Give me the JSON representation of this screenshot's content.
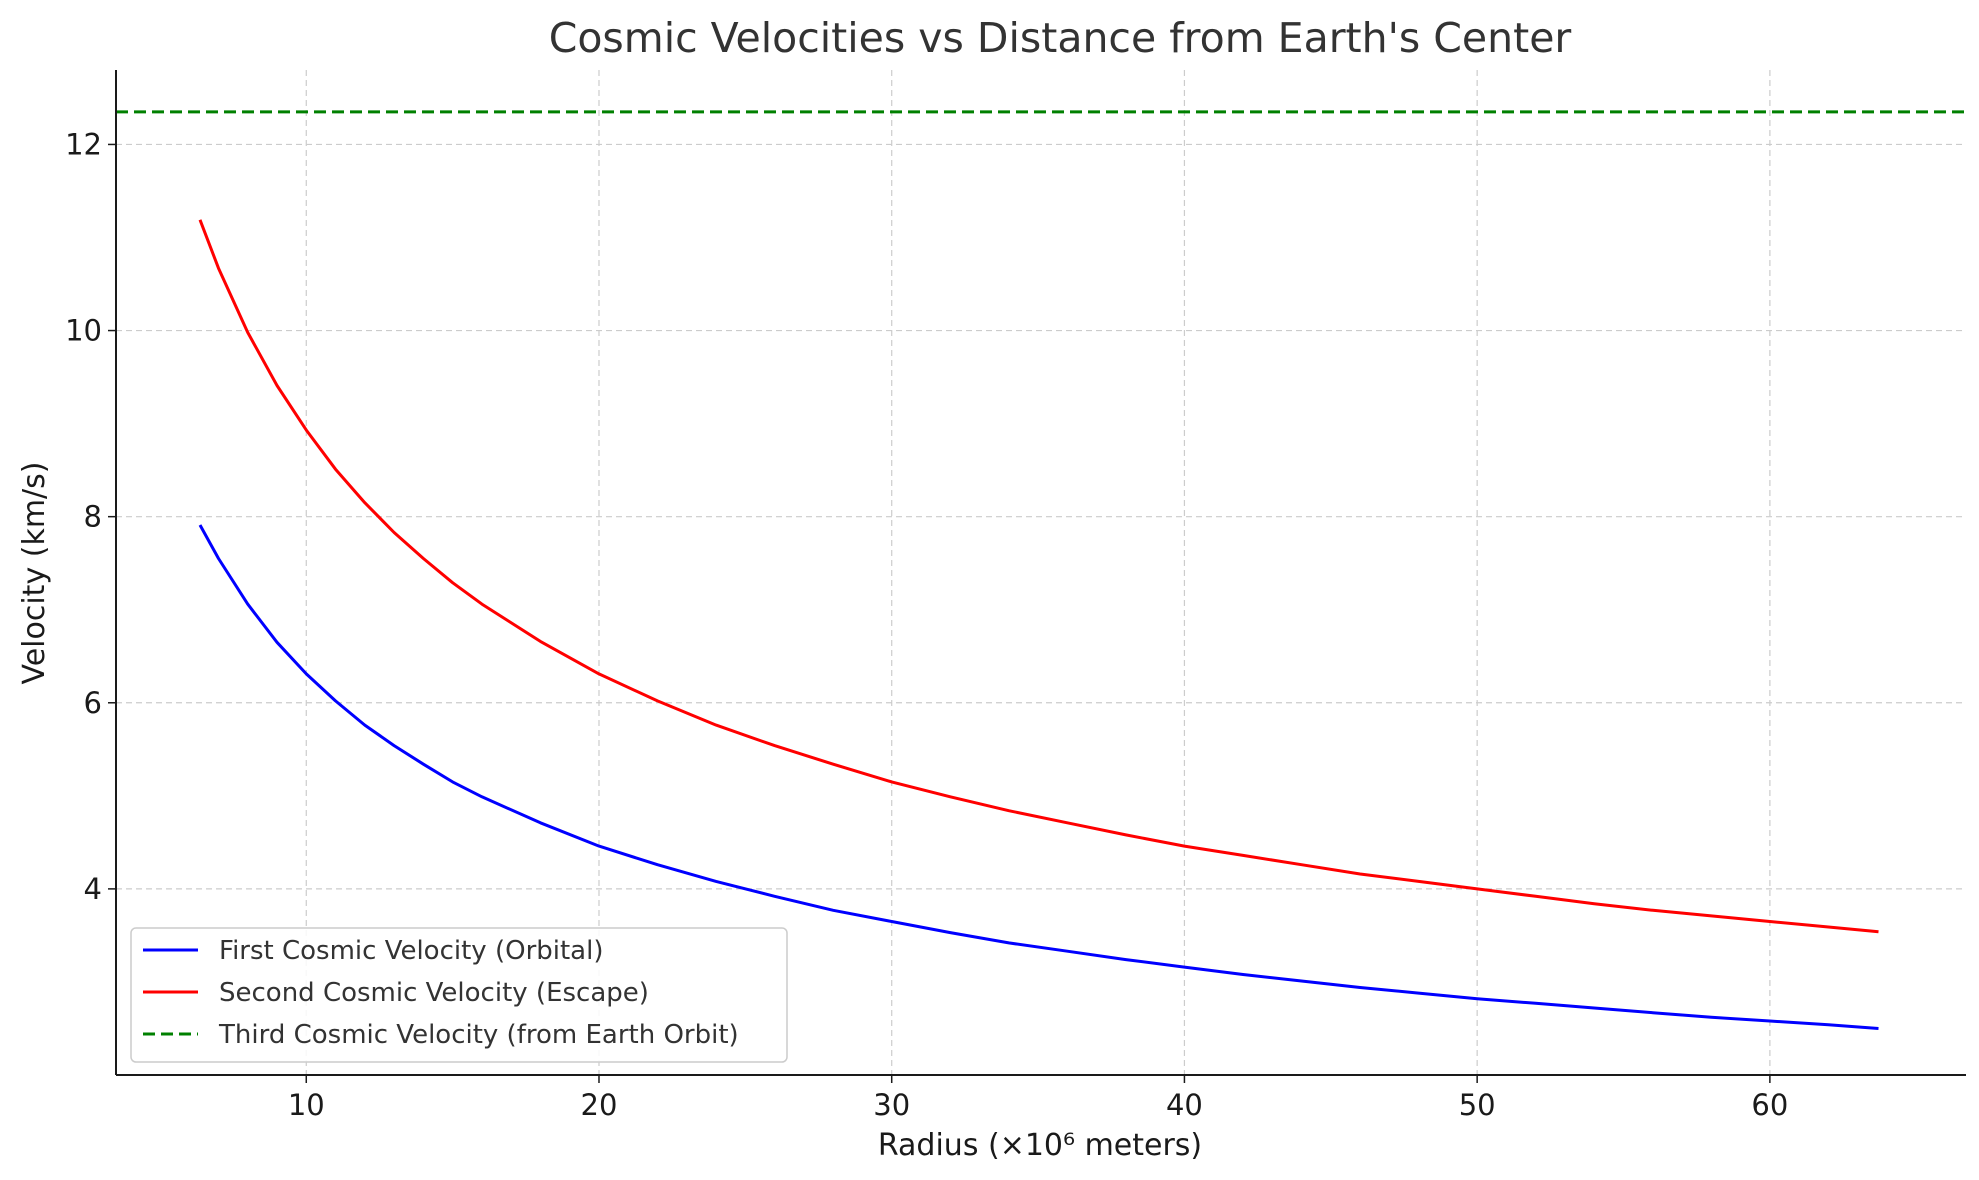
{
  "chart_data": {
    "type": "line",
    "title": "Cosmic Velocities vs Distance from Earth's Center",
    "xlabel": "Radius (×10⁶ meters)",
    "ylabel": "Velocity (km/s)",
    "xlim": [
      3.5,
      66.7
    ],
    "ylim": [
      2.0,
      12.8
    ],
    "xticks": [
      10,
      20,
      30,
      40,
      50,
      60
    ],
    "yticks": [
      4,
      6,
      8,
      10,
      12
    ],
    "grid": true,
    "legend_position": "lower-left",
    "series": [
      {
        "name": "First Cosmic Velocity (Orbital)",
        "color": "#0000ff",
        "style": "solid",
        "x": [
          6.371,
          7,
          8,
          9,
          10,
          11,
          12,
          13,
          14,
          15,
          16,
          18,
          20,
          22,
          24,
          26,
          28,
          30,
          32,
          34,
          36,
          38,
          40,
          42,
          44,
          46,
          48,
          50,
          52,
          54,
          56,
          58,
          60,
          62,
          63.71
        ],
        "y": [
          7.91,
          7.55,
          7.06,
          6.65,
          6.31,
          6.02,
          5.76,
          5.54,
          5.34,
          5.15,
          4.99,
          4.71,
          4.46,
          4.26,
          4.08,
          3.92,
          3.77,
          3.65,
          3.53,
          3.42,
          3.33,
          3.24,
          3.16,
          3.08,
          3.01,
          2.94,
          2.88,
          2.82,
          2.77,
          2.72,
          2.67,
          2.62,
          2.58,
          2.54,
          2.5
        ]
      },
      {
        "name": "Second Cosmic Velocity (Escape)",
        "color": "#ff0000",
        "style": "solid",
        "x": [
          6.371,
          7,
          8,
          9,
          10,
          11,
          12,
          13,
          14,
          15,
          16,
          18,
          20,
          22,
          24,
          26,
          28,
          30,
          32,
          34,
          36,
          38,
          40,
          42,
          44,
          46,
          48,
          50,
          52,
          54,
          56,
          58,
          60,
          62,
          63.71
        ],
        "y": [
          11.19,
          10.67,
          9.98,
          9.41,
          8.93,
          8.51,
          8.15,
          7.83,
          7.55,
          7.29,
          7.06,
          6.66,
          6.31,
          6.02,
          5.76,
          5.54,
          5.34,
          5.15,
          4.99,
          4.84,
          4.71,
          4.58,
          4.46,
          4.36,
          4.26,
          4.16,
          4.08,
          4.0,
          3.92,
          3.84,
          3.77,
          3.71,
          3.65,
          3.59,
          3.54
        ]
      },
      {
        "name": "Third Cosmic Velocity (from Earth Orbit)",
        "color": "#008000",
        "style": "dashed",
        "type": "hline",
        "y": 12.35
      }
    ]
  }
}
